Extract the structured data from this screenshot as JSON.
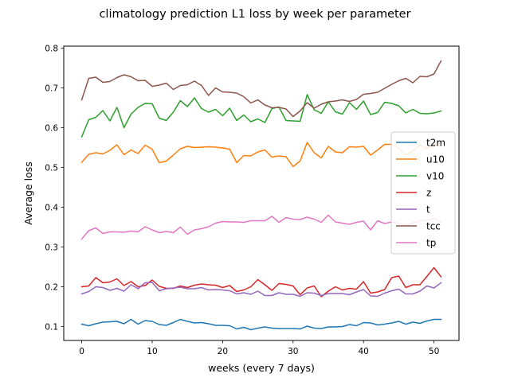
{
  "chart_data": {
    "type": "line",
    "title": "climatology prediction L1 loss by week per parameter",
    "xlabel": "weeks (every 7 days)",
    "ylabel": "Average loss",
    "xlim": [
      -2.55,
      53.55
    ],
    "ylim": [
      0.065,
      0.805
    ],
    "xticks": [
      0,
      10,
      20,
      30,
      40,
      50
    ],
    "yticks": [
      0.1,
      0.2,
      0.3,
      0.4,
      0.5,
      0.6,
      0.7,
      0.8
    ],
    "xtick_labels": [
      "0",
      "10",
      "20",
      "30",
      "40",
      "50"
    ],
    "ytick_labels": [
      "0.1",
      "0.2",
      "0.3",
      "0.4",
      "0.5",
      "0.6",
      "0.7",
      "0.8"
    ],
    "grid": false,
    "legend_position": "center-right",
    "x": [
      0,
      1,
      2,
      3,
      4,
      5,
      6,
      7,
      8,
      9,
      10,
      11,
      12,
      13,
      14,
      15,
      16,
      17,
      18,
      19,
      20,
      21,
      22,
      23,
      24,
      25,
      26,
      27,
      28,
      29,
      30,
      31,
      32,
      33,
      34,
      35,
      36,
      37,
      38,
      39,
      40,
      41,
      42,
      43,
      44,
      45,
      46,
      47,
      48,
      49,
      50,
      51
    ],
    "series": [
      {
        "name": "t2m",
        "color": "#1f77b4",
        "values": [
          0.106,
          0.102,
          0.107,
          0.111,
          0.112,
          0.113,
          0.107,
          0.118,
          0.106,
          0.115,
          0.113,
          0.105,
          0.103,
          0.11,
          0.118,
          0.113,
          0.109,
          0.11,
          0.107,
          0.103,
          0.103,
          0.102,
          0.094,
          0.098,
          0.092,
          0.096,
          0.099,
          0.096,
          0.095,
          0.095,
          0.095,
          0.094,
          0.101,
          0.096,
          0.095,
          0.099,
          0.099,
          0.1,
          0.105,
          0.102,
          0.11,
          0.109,
          0.104,
          0.106,
          0.109,
          0.113,
          0.106,
          0.111,
          0.108,
          0.114,
          0.118,
          0.118
        ]
      },
      {
        "name": "u10",
        "color": "#ff7f0e",
        "values": [
          0.513,
          0.533,
          0.537,
          0.534,
          0.543,
          0.557,
          0.532,
          0.544,
          0.535,
          0.556,
          0.546,
          0.512,
          0.516,
          0.531,
          0.547,
          0.553,
          0.55,
          0.551,
          0.552,
          0.551,
          0.549,
          0.546,
          0.512,
          0.53,
          0.529,
          0.539,
          0.544,
          0.526,
          0.529,
          0.527,
          0.502,
          0.516,
          0.563,
          0.537,
          0.524,
          0.553,
          0.539,
          0.537,
          0.552,
          0.551,
          0.553,
          0.531,
          0.544,
          0.558,
          0.558,
          0.549,
          0.532,
          0.541,
          0.557,
          0.547,
          0.558,
          0.553
        ]
      },
      {
        "name": "v10",
        "color": "#2ca02c",
        "values": [
          0.577,
          0.62,
          0.626,
          0.643,
          0.617,
          0.651,
          0.6,
          0.634,
          0.651,
          0.661,
          0.66,
          0.624,
          0.618,
          0.639,
          0.668,
          0.653,
          0.675,
          0.648,
          0.639,
          0.646,
          0.63,
          0.649,
          0.618,
          0.632,
          0.615,
          0.622,
          0.613,
          0.648,
          0.652,
          0.618,
          0.617,
          0.616,
          0.683,
          0.645,
          0.636,
          0.665,
          0.64,
          0.634,
          0.663,
          0.646,
          0.667,
          0.633,
          0.638,
          0.664,
          0.661,
          0.655,
          0.637,
          0.646,
          0.636,
          0.635,
          0.637,
          0.642
        ]
      },
      {
        "name": "z",
        "color": "#d62728",
        "values": [
          0.2,
          0.202,
          0.223,
          0.21,
          0.212,
          0.22,
          0.203,
          0.213,
          0.2,
          0.203,
          0.217,
          0.201,
          0.196,
          0.196,
          0.202,
          0.198,
          0.204,
          0.207,
          0.205,
          0.204,
          0.198,
          0.203,
          0.188,
          0.192,
          0.2,
          0.218,
          0.205,
          0.191,
          0.208,
          0.206,
          0.202,
          0.18,
          0.197,
          0.202,
          0.175,
          0.189,
          0.2,
          0.192,
          0.196,
          0.194,
          0.213,
          0.184,
          0.187,
          0.193,
          0.223,
          0.227,
          0.198,
          0.205,
          0.205,
          0.226,
          0.248,
          0.225
        ]
      },
      {
        "name": "t",
        "color": "#9467bd",
        "values": [
          0.182,
          0.188,
          0.2,
          0.198,
          0.191,
          0.196,
          0.189,
          0.205,
          0.195,
          0.21,
          0.211,
          0.19,
          0.195,
          0.197,
          0.199,
          0.195,
          0.195,
          0.198,
          0.192,
          0.193,
          0.192,
          0.19,
          0.182,
          0.185,
          0.181,
          0.189,
          0.178,
          0.178,
          0.185,
          0.181,
          0.181,
          0.176,
          0.185,
          0.184,
          0.178,
          0.183,
          0.183,
          0.183,
          0.18,
          0.187,
          0.193,
          0.177,
          0.176,
          0.184,
          0.19,
          0.194,
          0.182,
          0.182,
          0.189,
          0.202,
          0.197,
          0.21
        ]
      },
      {
        "name": "tcc",
        "color": "#8c564b",
        "values": [
          0.67,
          0.724,
          0.727,
          0.714,
          0.716,
          0.726,
          0.733,
          0.728,
          0.718,
          0.719,
          0.704,
          0.707,
          0.712,
          0.696,
          0.706,
          0.708,
          0.717,
          0.706,
          0.681,
          0.7,
          0.69,
          0.689,
          0.687,
          0.678,
          0.662,
          0.67,
          0.657,
          0.65,
          0.651,
          0.647,
          0.628,
          0.642,
          0.663,
          0.649,
          0.659,
          0.665,
          0.667,
          0.67,
          0.666,
          0.671,
          0.684,
          0.686,
          0.689,
          0.699,
          0.709,
          0.718,
          0.724,
          0.713,
          0.729,
          0.728,
          0.735,
          0.768
        ]
      },
      {
        "name": "tp",
        "color": "#e377c2",
        "values": [
          0.32,
          0.341,
          0.348,
          0.334,
          0.338,
          0.338,
          0.337,
          0.34,
          0.338,
          0.351,
          0.343,
          0.336,
          0.339,
          0.336,
          0.35,
          0.332,
          0.343,
          0.346,
          0.351,
          0.36,
          0.364,
          0.363,
          0.363,
          0.362,
          0.366,
          0.366,
          0.366,
          0.377,
          0.362,
          0.374,
          0.37,
          0.369,
          0.375,
          0.37,
          0.362,
          0.38,
          0.363,
          0.36,
          0.357,
          0.362,
          0.365,
          0.343,
          0.366,
          0.359,
          0.363,
          0.36,
          0.354,
          0.361,
          0.366,
          0.367,
          0.372,
          0.362
        ]
      }
    ]
  }
}
